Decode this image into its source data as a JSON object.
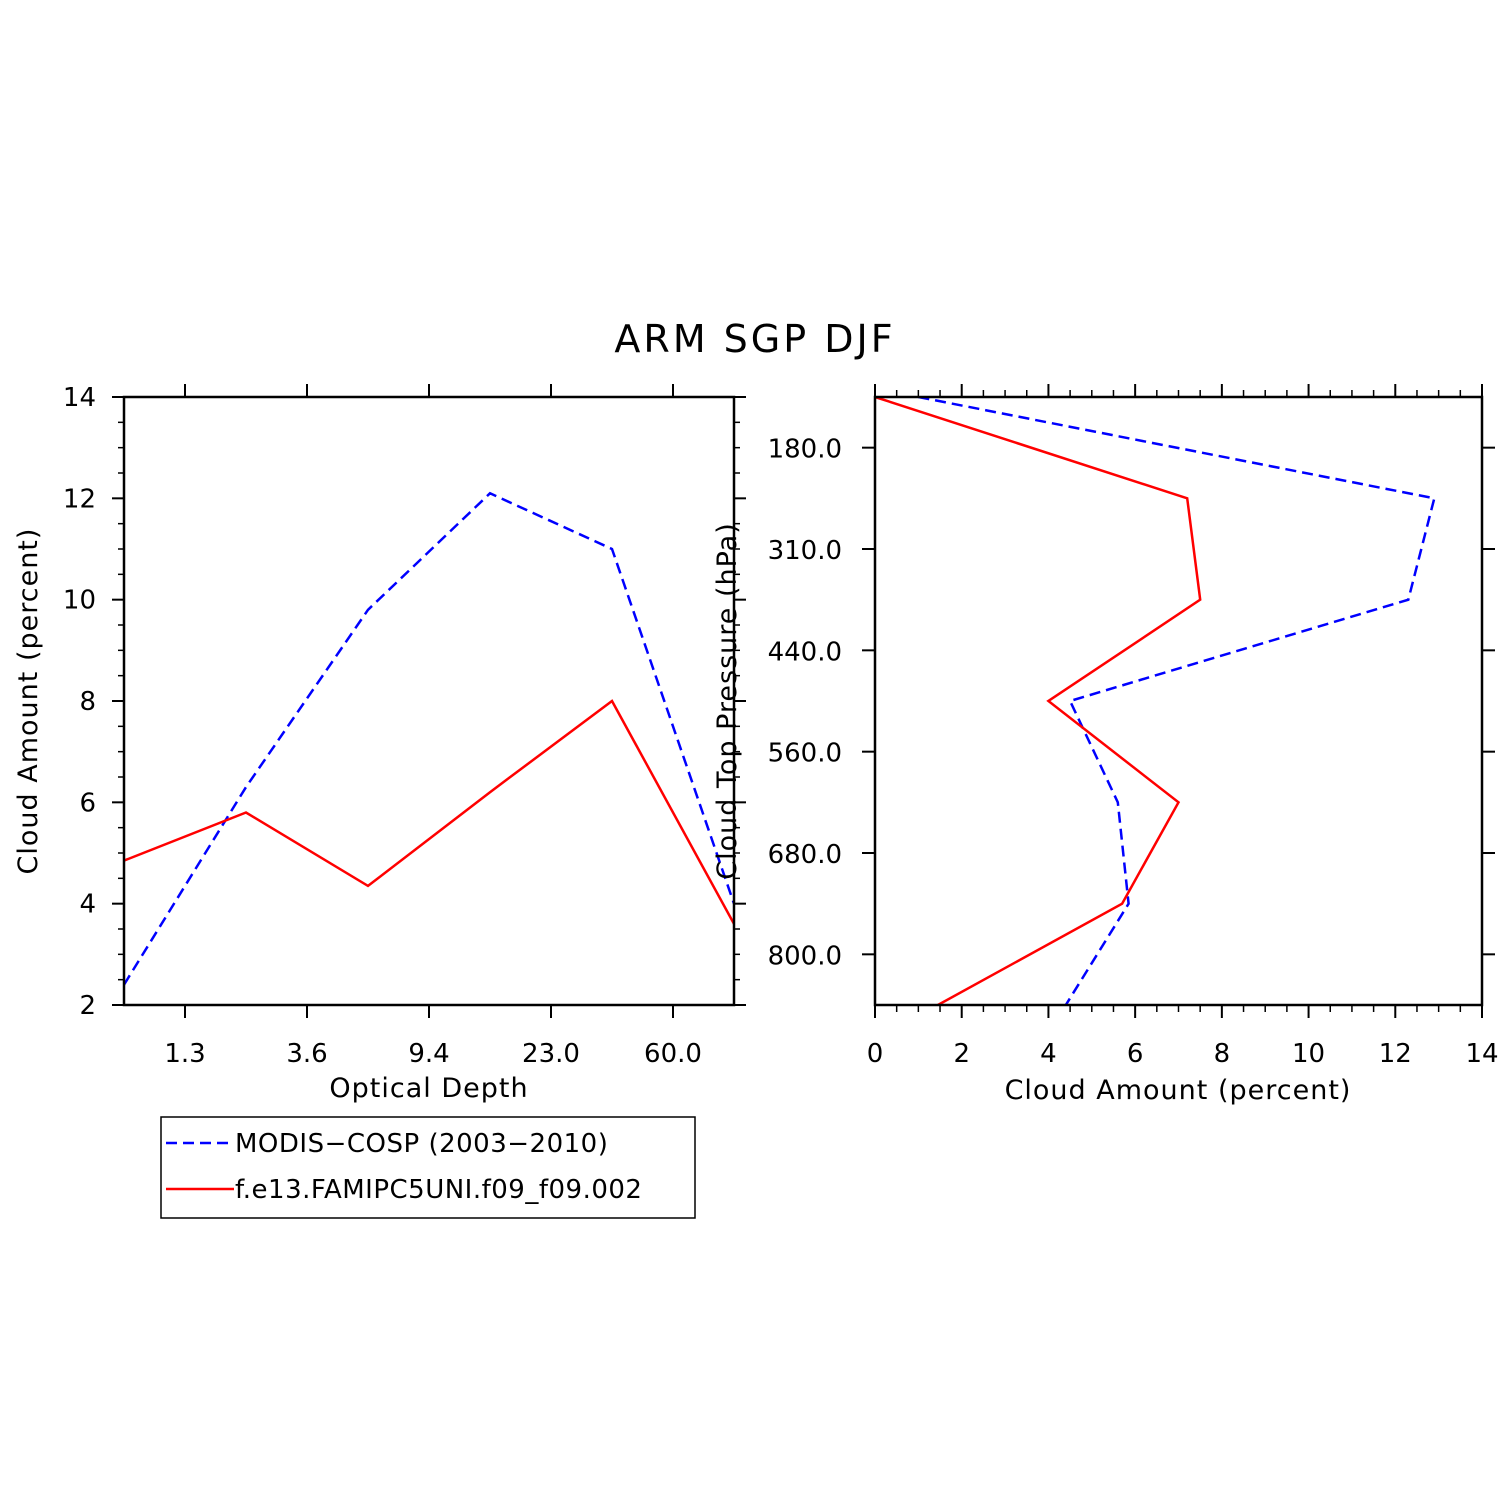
{
  "title": "ARM SGP DJF",
  "colors": {
    "modis": "#0000ff",
    "model": "#ff0000",
    "axes": "#000000"
  },
  "legend": {
    "position": "below-left",
    "entries": [
      {
        "label": "MODIS−COSP (2003−2010)",
        "color": "#0000ff",
        "dash": "dashed"
      },
      {
        "label": "f.e13.FAMIPC5UNI.f09_f09.002",
        "color": "#ff0000",
        "dash": "solid"
      }
    ]
  },
  "chart_data": [
    {
      "type": "line",
      "panel": "left",
      "xlabel": "Optical Depth",
      "ylabel": "Cloud Amount (percent)",
      "xlim": [
        0,
        5
      ],
      "ylim": [
        2,
        14
      ],
      "x_ticks": [
        0.5,
        1.5,
        2.5,
        3.5,
        4.5
      ],
      "x_tick_labels": [
        "1.3",
        "3.6",
        "9.4",
        "23.0",
        "60.0"
      ],
      "y_ticks": [
        2,
        4,
        6,
        8,
        10,
        12,
        14
      ],
      "x": [
        0,
        1,
        2,
        3,
        4,
        5
      ],
      "series": [
        {
          "name": "MODIS−COSP (2003−2010)",
          "x": [
            0,
            1,
            2,
            3,
            4,
            5
          ],
          "values": [
            2.4,
            6.3,
            9.8,
            12.1,
            11.0,
            4.0
          ]
        },
        {
          "name": "f.e13.FAMIPC5UNI.f09_f09.002",
          "x": [
            0,
            1,
            2,
            3,
            4,
            5
          ],
          "values": [
            4.85,
            5.8,
            4.35,
            6.2,
            8.0,
            3.6
          ]
        }
      ]
    },
    {
      "type": "line",
      "panel": "right",
      "xlabel": "Cloud Amount (percent)",
      "ylabel": "Cloud Top Pressure (hPa)",
      "xlim": [
        0,
        14
      ],
      "ylim": [
        0,
        6
      ],
      "x_ticks": [
        0,
        2,
        4,
        6,
        8,
        10,
        12,
        14
      ],
      "y_ticks": [
        0.5,
        1.5,
        2.5,
        3.5,
        4.5,
        5.5
      ],
      "y_tick_labels": [
        "180.0",
        "310.0",
        "440.0",
        "560.0",
        "680.0",
        "800.0"
      ],
      "series": [
        {
          "name": "MODIS−COSP (2003−2010)",
          "x": [
            1.0,
            12.9,
            12.3,
            4.5,
            5.6,
            5.85,
            4.4
          ],
          "y": [
            0,
            1,
            2,
            3,
            4,
            5,
            6
          ]
        },
        {
          "name": "f.e13.FAMIPC5UNI.f09_f09.002",
          "x": [
            0,
            7.2,
            7.5,
            4.0,
            7.0,
            5.7,
            1.45
          ],
          "y": [
            0,
            1,
            2,
            3,
            4,
            5,
            6
          ]
        }
      ]
    }
  ]
}
